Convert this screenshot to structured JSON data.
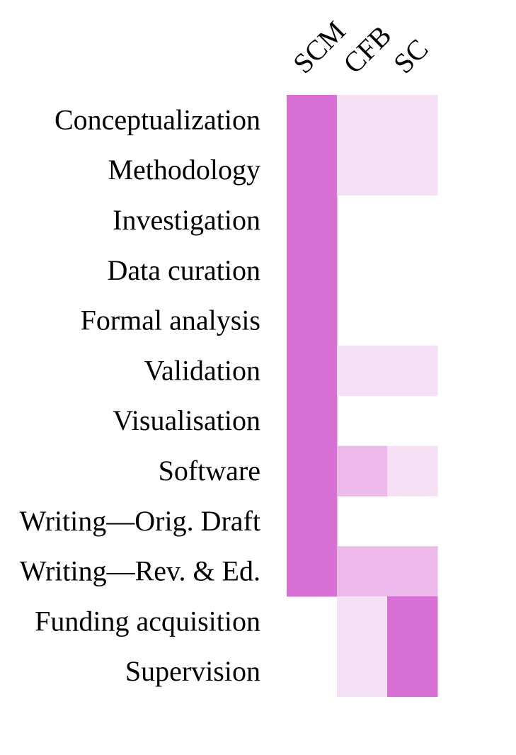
{
  "chart_data": {
    "type": "heatmap",
    "title": "",
    "xlabel": "",
    "ylabel": "",
    "columns": [
      "SCM",
      "CFB",
      "SC"
    ],
    "rows": [
      "Conceptualization",
      "Methodology",
      "Investigation",
      "Data curation",
      "Formal analysis",
      "Validation",
      "Visualisation",
      "Software",
      "Writing—Orig. Draft",
      "Writing—Rev. & Ed.",
      "Funding acquisition",
      "Supervision"
    ],
    "values": [
      [
        3,
        1,
        1
      ],
      [
        3,
        1,
        1
      ],
      [
        3,
        0,
        0
      ],
      [
        3,
        0,
        0
      ],
      [
        3,
        0,
        0
      ],
      [
        3,
        1,
        1
      ],
      [
        3,
        0,
        0
      ],
      [
        3,
        2,
        1
      ],
      [
        3,
        0,
        0
      ],
      [
        3,
        2,
        2
      ],
      [
        0,
        1,
        3
      ],
      [
        0,
        1,
        3
      ]
    ],
    "scale": {
      "0": "#ffffff",
      "1": "#f6e0f5",
      "2": "#edb9ea",
      "3": "#d970d6"
    },
    "grid": false,
    "legend": "none"
  }
}
